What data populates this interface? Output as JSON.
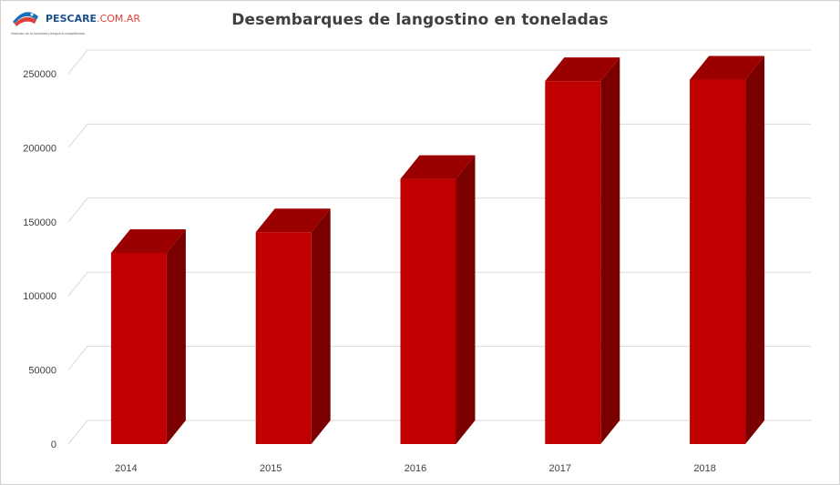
{
  "logo": {
    "name_main": "PESCARE",
    "name_tld": ".COM.AR",
    "tagline": "Noticias de la industria pesquera marplatense"
  },
  "chart_data": {
    "type": "bar",
    "title": "Desembarques de langostino en toneladas",
    "categories": [
      "2014",
      "2015",
      "2016",
      "2017",
      "2018"
    ],
    "values": [
      129000,
      143000,
      179000,
      245000,
      246000
    ],
    "ylim": [
      0,
      250000
    ],
    "yticks": [
      "0",
      "50000",
      "100000",
      "150000",
      "200000",
      "250000"
    ],
    "xlabel": "",
    "ylabel": "",
    "grid": true,
    "legend": "none",
    "colors": {
      "front": "#c00000",
      "top": "#9b0000",
      "side": "#7a0000",
      "grid": "#d9d9d9"
    }
  }
}
